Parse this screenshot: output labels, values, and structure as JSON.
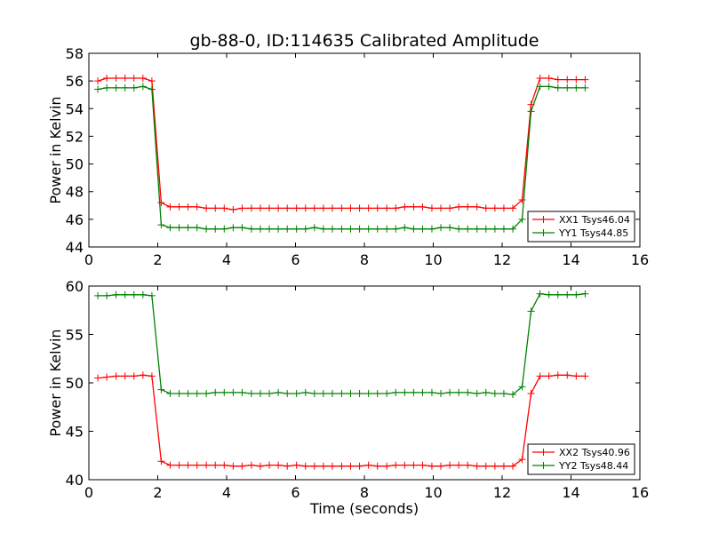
{
  "title": "gb-88-0, ID:114635 Calibrated Amplitude",
  "chart_data": [
    {
      "type": "line",
      "title": "gb-88-0, ID:114635 Calibrated Amplitude",
      "xlabel": "",
      "ylabel": "Power in Kelvin",
      "xlim": [
        0,
        16
      ],
      "ylim": [
        44,
        58
      ],
      "xticks": [
        0,
        2,
        4,
        6,
        8,
        10,
        12,
        14,
        16
      ],
      "yticks": [
        44,
        46,
        48,
        50,
        52,
        54,
        56,
        58
      ],
      "grid": false,
      "legend_position": "bottom-right",
      "series": [
        {
          "name": "XX1 Tsys46.04",
          "color": "#ff0000",
          "x": [
            0.26,
            0.52,
            0.79,
            1.05,
            1.31,
            1.57,
            1.83,
            2.1,
            2.36,
            2.62,
            2.88,
            3.14,
            3.41,
            3.67,
            3.93,
            4.19,
            4.45,
            4.72,
            4.98,
            5.24,
            5.5,
            5.76,
            6.03,
            6.29,
            6.55,
            6.81,
            7.07,
            7.34,
            7.6,
            7.86,
            8.12,
            8.38,
            8.65,
            8.91,
            9.17,
            9.43,
            9.69,
            9.96,
            10.22,
            10.48,
            10.74,
            11.0,
            11.27,
            11.53,
            11.79,
            12.05,
            12.31,
            12.58,
            12.84,
            13.1,
            13.36,
            13.62,
            13.89,
            14.15,
            14.41
          ],
          "y": [
            56.0,
            56.2,
            56.2,
            56.2,
            56.2,
            56.2,
            56.0,
            47.2,
            46.9,
            46.9,
            46.9,
            46.9,
            46.8,
            46.8,
            46.8,
            46.7,
            46.8,
            46.8,
            46.8,
            46.8,
            46.8,
            46.8,
            46.8,
            46.8,
            46.8,
            46.8,
            46.8,
            46.8,
            46.8,
            46.8,
            46.8,
            46.8,
            46.8,
            46.8,
            46.9,
            46.9,
            46.9,
            46.8,
            46.8,
            46.8,
            46.9,
            46.9,
            46.9,
            46.8,
            46.8,
            46.8,
            46.8,
            47.4,
            54.3,
            56.2,
            56.2,
            56.1,
            56.1,
            56.1,
            56.1
          ]
        },
        {
          "name": "YY1 Tsys44.85",
          "color": "#008000",
          "x": [
            0.26,
            0.52,
            0.79,
            1.05,
            1.31,
            1.57,
            1.83,
            2.1,
            2.36,
            2.62,
            2.88,
            3.14,
            3.41,
            3.67,
            3.93,
            4.19,
            4.45,
            4.72,
            4.98,
            5.24,
            5.5,
            5.76,
            6.03,
            6.29,
            6.55,
            6.81,
            7.07,
            7.34,
            7.6,
            7.86,
            8.12,
            8.38,
            8.65,
            8.91,
            9.17,
            9.43,
            9.69,
            9.96,
            10.22,
            10.48,
            10.74,
            11.0,
            11.27,
            11.53,
            11.79,
            12.05,
            12.31,
            12.58,
            12.84,
            13.1,
            13.36,
            13.62,
            13.89,
            14.15,
            14.41
          ],
          "y": [
            55.4,
            55.5,
            55.5,
            55.5,
            55.5,
            55.6,
            55.4,
            45.6,
            45.4,
            45.4,
            45.4,
            45.4,
            45.3,
            45.3,
            45.3,
            45.4,
            45.4,
            45.3,
            45.3,
            45.3,
            45.3,
            45.3,
            45.3,
            45.3,
            45.4,
            45.3,
            45.3,
            45.3,
            45.3,
            45.3,
            45.3,
            45.3,
            45.3,
            45.3,
            45.4,
            45.3,
            45.3,
            45.3,
            45.4,
            45.4,
            45.3,
            45.3,
            45.3,
            45.3,
            45.3,
            45.3,
            45.3,
            46.0,
            53.8,
            55.6,
            55.6,
            55.5,
            55.5,
            55.5,
            55.5
          ]
        }
      ]
    },
    {
      "type": "line",
      "title": "",
      "xlabel": "Time (seconds)",
      "ylabel": "Power in Kelvin",
      "xlim": [
        0,
        16
      ],
      "ylim": [
        40,
        60
      ],
      "xticks": [
        0,
        2,
        4,
        6,
        8,
        10,
        12,
        14,
        16
      ],
      "yticks": [
        40,
        45,
        50,
        55,
        60
      ],
      "grid": false,
      "legend_position": "bottom-right",
      "series": [
        {
          "name": "XX2 Tsys40.96",
          "color": "#ff0000",
          "x": [
            0.26,
            0.52,
            0.79,
            1.05,
            1.31,
            1.57,
            1.83,
            2.1,
            2.36,
            2.62,
            2.88,
            3.14,
            3.41,
            3.67,
            3.93,
            4.19,
            4.45,
            4.72,
            4.98,
            5.24,
            5.5,
            5.76,
            6.03,
            6.29,
            6.55,
            6.81,
            7.07,
            7.34,
            7.6,
            7.86,
            8.12,
            8.38,
            8.65,
            8.91,
            9.17,
            9.43,
            9.69,
            9.96,
            10.22,
            10.48,
            10.74,
            11.0,
            11.27,
            11.53,
            11.79,
            12.05,
            12.31,
            12.58,
            12.84,
            13.1,
            13.36,
            13.62,
            13.89,
            14.15,
            14.41
          ],
          "y": [
            50.5,
            50.6,
            50.7,
            50.7,
            50.7,
            50.8,
            50.7,
            41.9,
            41.5,
            41.5,
            41.5,
            41.5,
            41.5,
            41.5,
            41.5,
            41.4,
            41.4,
            41.5,
            41.4,
            41.5,
            41.5,
            41.4,
            41.5,
            41.4,
            41.4,
            41.4,
            41.4,
            41.4,
            41.4,
            41.4,
            41.5,
            41.4,
            41.4,
            41.5,
            41.5,
            41.5,
            41.5,
            41.4,
            41.4,
            41.5,
            41.5,
            41.5,
            41.4,
            41.4,
            41.4,
            41.4,
            41.4,
            42.1,
            48.9,
            50.7,
            50.7,
            50.8,
            50.8,
            50.7,
            50.7
          ]
        },
        {
          "name": "YY2 Tsys48.44",
          "color": "#008000",
          "x": [
            0.26,
            0.52,
            0.79,
            1.05,
            1.31,
            1.57,
            1.83,
            2.1,
            2.36,
            2.62,
            2.88,
            3.14,
            3.41,
            3.67,
            3.93,
            4.19,
            4.45,
            4.72,
            4.98,
            5.24,
            5.5,
            5.76,
            6.03,
            6.29,
            6.55,
            6.81,
            7.07,
            7.34,
            7.6,
            7.86,
            8.12,
            8.38,
            8.65,
            8.91,
            9.17,
            9.43,
            9.69,
            9.96,
            10.22,
            10.48,
            10.74,
            11.0,
            11.27,
            11.53,
            11.79,
            12.05,
            12.31,
            12.58,
            12.84,
            13.1,
            13.36,
            13.62,
            13.89,
            14.15,
            14.41
          ],
          "y": [
            59.0,
            59.0,
            59.1,
            59.1,
            59.1,
            59.1,
            59.0,
            49.3,
            48.9,
            48.9,
            48.9,
            48.9,
            48.9,
            49.0,
            49.0,
            49.0,
            49.0,
            48.9,
            48.9,
            48.9,
            49.0,
            48.9,
            48.9,
            49.0,
            48.9,
            48.9,
            48.9,
            48.9,
            48.9,
            48.9,
            48.9,
            48.9,
            48.9,
            49.0,
            49.0,
            49.0,
            49.0,
            49.0,
            48.9,
            49.0,
            49.0,
            49.0,
            48.9,
            49.0,
            48.9,
            48.9,
            48.8,
            49.6,
            57.4,
            59.2,
            59.1,
            59.1,
            59.1,
            59.1,
            59.2
          ]
        }
      ]
    }
  ]
}
